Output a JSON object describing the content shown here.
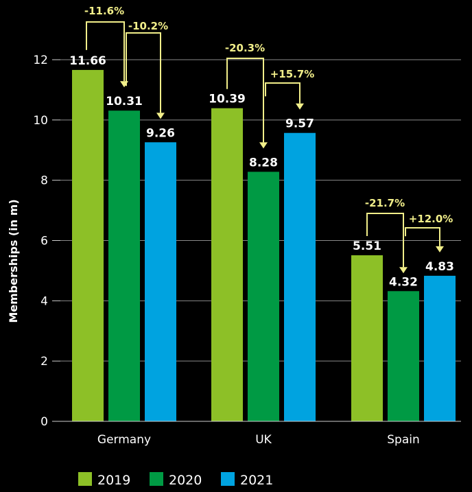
{
  "chart_data": {
    "type": "bar",
    "ylabel": "Memberships (in m)",
    "ylim": [
      0,
      12
    ],
    "yticks": [
      0,
      2,
      4,
      6,
      8,
      10,
      12
    ],
    "grid": true,
    "legend_position": "bottom",
    "categories": [
      "Germany",
      "UK",
      "Spain"
    ],
    "series": [
      {
        "name": "2019",
        "color": "#8dc027",
        "values": [
          11.66,
          10.39,
          5.51
        ]
      },
      {
        "name": "2020",
        "color": "#009a44",
        "values": [
          10.31,
          8.28,
          4.32
        ]
      },
      {
        "name": "2021",
        "color": "#00a3e0",
        "values": [
          9.26,
          9.57,
          4.83
        ]
      }
    ],
    "annotations": [
      {
        "category": "Germany",
        "change_2019_2020": "-11.6%",
        "change_2020_2021": "-10.2%"
      },
      {
        "category": "UK",
        "change_2019_2020": "-20.3%",
        "change_2020_2021": "+15.7%"
      },
      {
        "category": "Spain",
        "change_2019_2020": "-21.7%",
        "change_2020_2021": "+12.0%"
      }
    ],
    "annotation_color": "#f2ef8a"
  }
}
